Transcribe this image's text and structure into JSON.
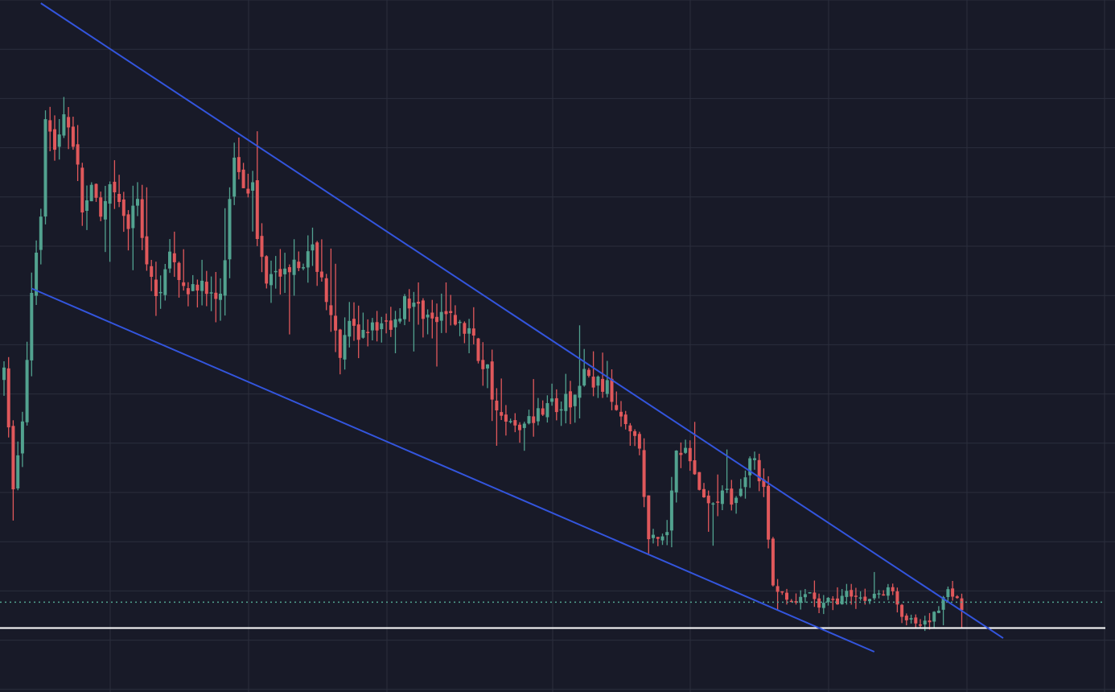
{
  "colors": {
    "background": "#181a28",
    "grid": "#2b2e3d",
    "up": "#52a28f",
    "down": "#e0585b",
    "trendline": "#3355dd",
    "support": "#ffffff",
    "price_line": "#52a28f"
  },
  "chart_data": {
    "type": "candlestick",
    "y_range": [
      0,
      100
    ],
    "x_range": [
      0,
      228
    ],
    "grid": true,
    "price_line": 11.8,
    "support_level": 8.0,
    "trendlines": [
      {
        "start": [
          8,
          100
        ],
        "end": [
          217,
          6.5
        ]
      },
      {
        "start": [
          6,
          58
        ],
        "end": [
          189,
          4.5
        ]
      }
    ],
    "series": [
      {
        "name": "",
        "key_points": [
          [
            0,
            45
          ],
          [
            2,
            29
          ],
          [
            4,
            38
          ],
          [
            6,
            58
          ],
          [
            8,
            70
          ],
          [
            9,
            84
          ],
          [
            11,
            78
          ],
          [
            13,
            84
          ],
          [
            15,
            80
          ],
          [
            17,
            70
          ],
          [
            19,
            72
          ],
          [
            21,
            68
          ],
          [
            23,
            72
          ],
          [
            25,
            70
          ],
          [
            27,
            67
          ],
          [
            29,
            71
          ],
          [
            31,
            62
          ],
          [
            33,
            56
          ],
          [
            35,
            62
          ],
          [
            37,
            62
          ],
          [
            39,
            57
          ],
          [
            41,
            60
          ],
          [
            43,
            58
          ],
          [
            45,
            57
          ],
          [
            47,
            56
          ],
          [
            48,
            63
          ],
          [
            50,
            78
          ],
          [
            52,
            74
          ],
          [
            54,
            73
          ],
          [
            55,
            65
          ],
          [
            57,
            60
          ],
          [
            59,
            62
          ],
          [
            61,
            60
          ],
          [
            63,
            63
          ],
          [
            65,
            62
          ],
          [
            67,
            63
          ],
          [
            69,
            60
          ],
          [
            71,
            53
          ],
          [
            73,
            48
          ],
          [
            75,
            52
          ],
          [
            77,
            51
          ],
          [
            79,
            53
          ],
          [
            81,
            51
          ],
          [
            83,
            53
          ],
          [
            85,
            53
          ],
          [
            87,
            57
          ],
          [
            89,
            55
          ],
          [
            91,
            55
          ],
          [
            93,
            53
          ],
          [
            95,
            53
          ],
          [
            97,
            55
          ],
          [
            99,
            52
          ],
          [
            101,
            52
          ],
          [
            103,
            48
          ],
          [
            105,
            46
          ],
          [
            107,
            40
          ],
          [
            109,
            38
          ],
          [
            111,
            38
          ],
          [
            113,
            38
          ],
          [
            115,
            39
          ],
          [
            117,
            41
          ],
          [
            118,
            42
          ],
          [
            120,
            40
          ],
          [
            122,
            41
          ],
          [
            124,
            42
          ],
          [
            126,
            45
          ],
          [
            128,
            44
          ],
          [
            130,
            44
          ],
          [
            132,
            42
          ],
          [
            134,
            40
          ],
          [
            136,
            38
          ],
          [
            138,
            34
          ],
          [
            140,
            21
          ],
          [
            142,
            21
          ],
          [
            144,
            22
          ],
          [
            146,
            35
          ],
          [
            148,
            34
          ],
          [
            150,
            31
          ],
          [
            152,
            27
          ],
          [
            154,
            26
          ],
          [
            156,
            28
          ],
          [
            158,
            27
          ],
          [
            160,
            28
          ],
          [
            162,
            34
          ],
          [
            163,
            33
          ],
          [
            165,
            28
          ],
          [
            167,
            14
          ],
          [
            169,
            13
          ],
          [
            171,
            12
          ],
          [
            173,
            12
          ],
          [
            175,
            13
          ],
          [
            177,
            11
          ],
          [
            179,
            12
          ],
          [
            181,
            12
          ],
          [
            183,
            13
          ],
          [
            185,
            13
          ],
          [
            187,
            12
          ],
          [
            189,
            13
          ],
          [
            191,
            13
          ],
          [
            193,
            14
          ],
          [
            195,
            10
          ],
          [
            197,
            9
          ],
          [
            199,
            8
          ],
          [
            201,
            9
          ],
          [
            203,
            11
          ],
          [
            205,
            14
          ],
          [
            207,
            12
          ],
          [
            208,
            11
          ]
        ]
      }
    ]
  }
}
